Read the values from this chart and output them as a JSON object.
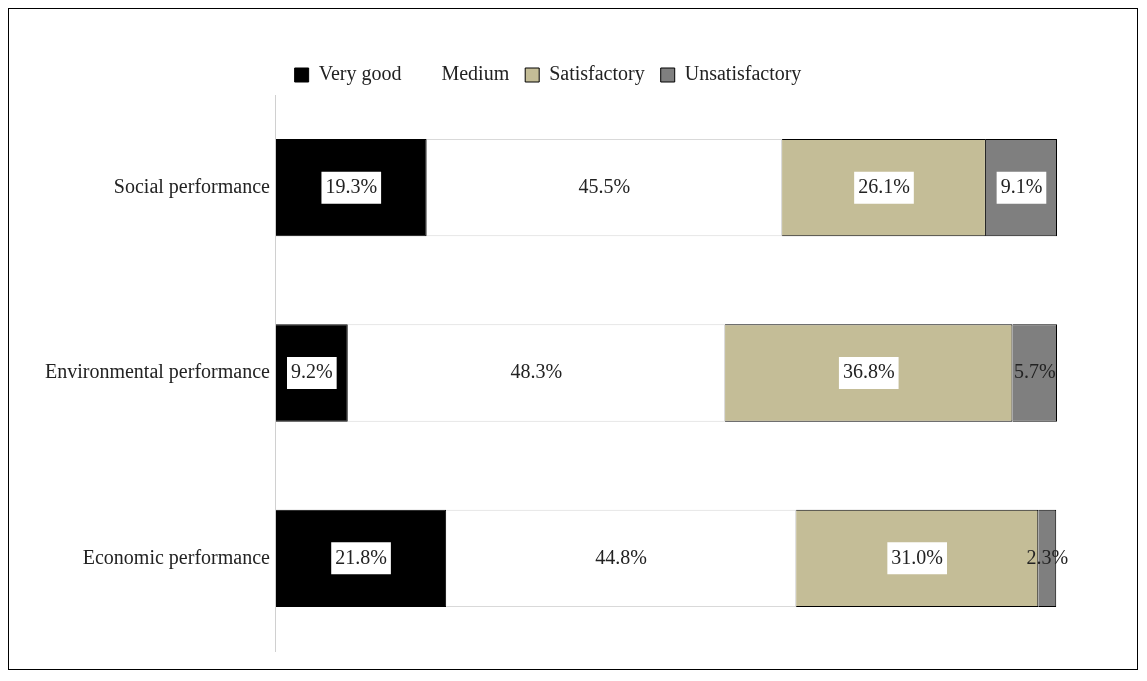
{
  "chart_data": {
    "type": "bar",
    "orientation": "horizontal",
    "stacked": true,
    "categories": [
      "Social performance",
      "Environmental performance",
      "Economic performance"
    ],
    "series": [
      {
        "name": "Very good",
        "color": "#000000",
        "values": [
          19.3,
          9.2,
          21.8
        ],
        "value_labels": [
          "19.3%",
          "9.2%",
          "21.8%"
        ]
      },
      {
        "name": "Medium",
        "color": "#ffffff",
        "values": [
          45.5,
          48.3,
          44.8
        ],
        "value_labels": [
          "45.5%",
          "48.3%",
          "44.8%"
        ]
      },
      {
        "name": "Satisfactory",
        "color": "#c4bd97",
        "values": [
          26.1,
          36.8,
          31.0
        ],
        "value_labels": [
          "26.1%",
          "36.8%",
          "31.0%"
        ]
      },
      {
        "name": "Unsatisfactory",
        "color": "#7f7f7f",
        "values": [
          9.1,
          5.7,
          2.3
        ],
        "value_labels": [
          "9.1%",
          "5.7%",
          "2.3%"
        ]
      }
    ],
    "xlim": [
      0,
      100
    ],
    "tick_labels": "y",
    "grid": false,
    "legend": "top"
  }
}
